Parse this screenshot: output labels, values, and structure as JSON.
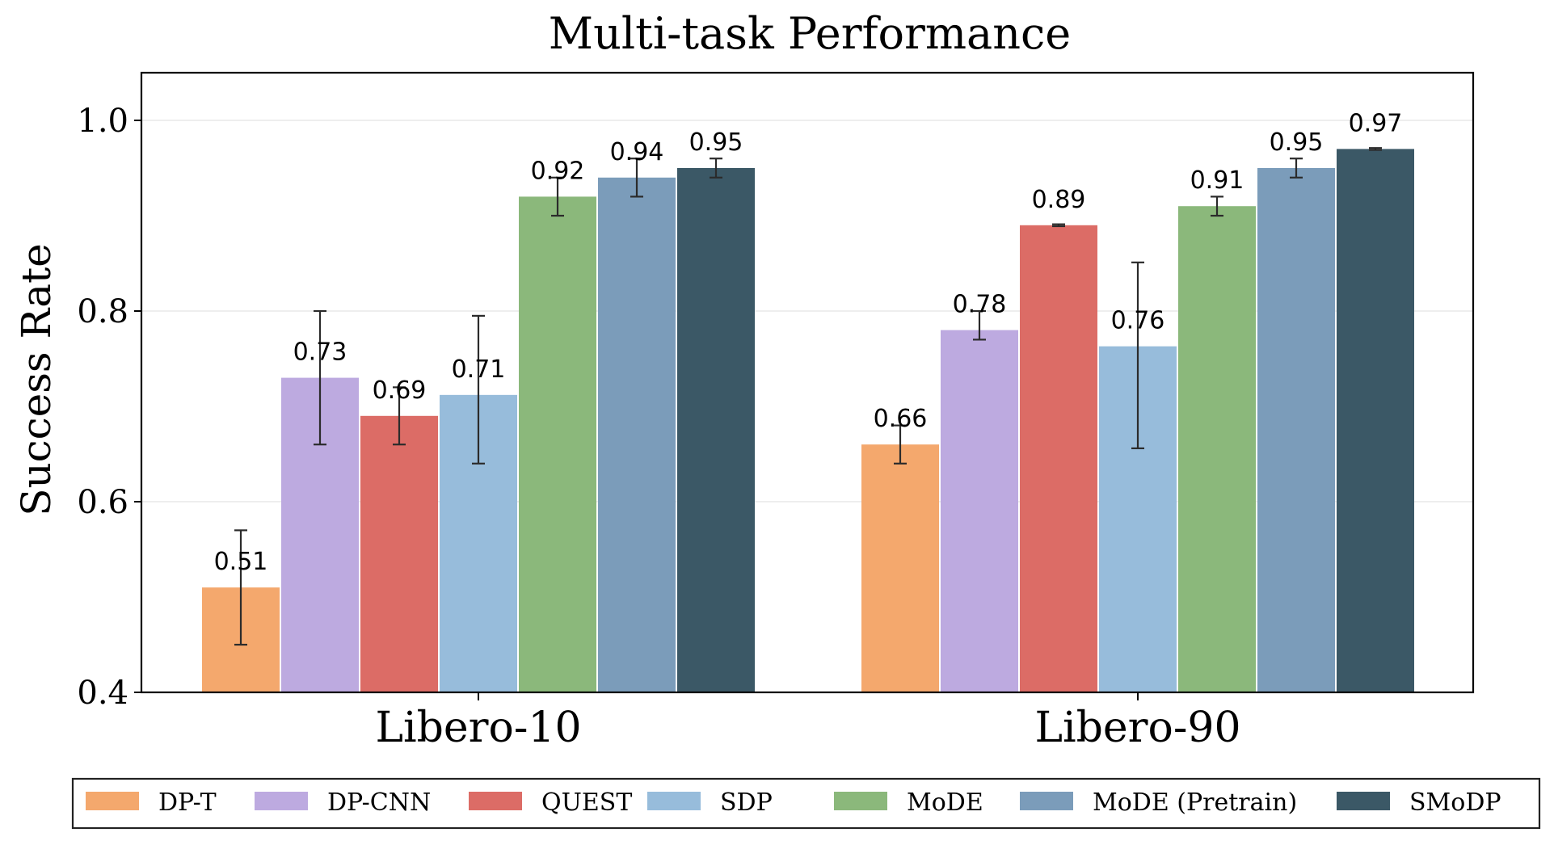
{
  "chart_data": {
    "type": "bar",
    "title": "Multi-task Performance",
    "xlabel": "",
    "ylabel": "Success Rate",
    "ylim": [
      0.4,
      1.05
    ],
    "yticks": [
      "0.4",
      "0.6",
      "0.8",
      "1.0"
    ],
    "ytick_values": [
      0.4,
      0.6,
      0.8,
      1.0
    ],
    "grid": true,
    "legend_position": "bottom",
    "categories": [
      "Libero-10",
      "Libero-90"
    ],
    "series": [
      {
        "name": "DP-T",
        "color": "#f4a86d",
        "values": [
          0.51,
          0.66
        ],
        "labels": [
          "0.51",
          "0.66"
        ],
        "err_low": [
          0.45,
          0.64
        ],
        "err_high": [
          0.57,
          0.68
        ]
      },
      {
        "name": "DP-CNN",
        "color": "#bdaae0",
        "values": [
          0.73,
          0.78
        ],
        "labels": [
          "0.73",
          "0.78"
        ],
        "err_low": [
          0.66,
          0.77
        ],
        "err_high": [
          0.8,
          0.8
        ]
      },
      {
        "name": "QUEST",
        "color": "#dc6c66",
        "values": [
          0.69,
          0.89
        ],
        "labels": [
          "0.69",
          "0.89"
        ],
        "err_low": [
          0.66,
          0.889
        ],
        "err_high": [
          0.72,
          0.891
        ]
      },
      {
        "name": "SDP",
        "color": "#97bcdb",
        "values": [
          0.712,
          0.763
        ],
        "labels": [
          "0.71",
          "0.76"
        ],
        "err_low": [
          0.64,
          0.656
        ],
        "err_high": [
          0.795,
          0.851
        ]
      },
      {
        "name": "MoDE",
        "color": "#8bb87b",
        "values": [
          0.92,
          0.91
        ],
        "labels": [
          "0.92",
          "0.91"
        ],
        "err_low": [
          0.9,
          0.9
        ],
        "err_high": [
          0.94,
          0.92
        ]
      },
      {
        "name": "MoDE (Pretrain)",
        "color": "#7b9cba",
        "values": [
          0.94,
          0.95
        ],
        "labels": [
          "0.94",
          "0.95"
        ],
        "err_low": [
          0.92,
          0.94
        ],
        "err_high": [
          0.96,
          0.96
        ]
      },
      {
        "name": "SMoDP",
        "color": "#3b5866",
        "values": [
          0.95,
          0.97
        ],
        "labels": [
          "0.95",
          "0.97"
        ],
        "err_low": [
          0.94,
          0.969
        ],
        "err_high": [
          0.96,
          0.971
        ]
      }
    ]
  }
}
